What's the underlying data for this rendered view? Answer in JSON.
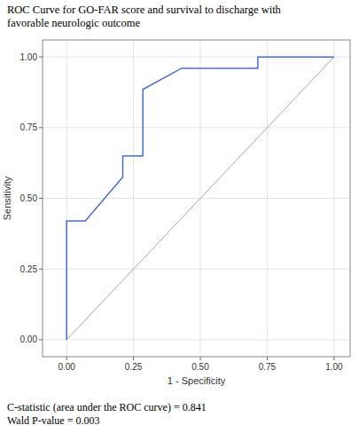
{
  "chart_data": {
    "type": "line",
    "title": [
      "ROC Curve for GO-FAR score and survival to discharge with",
      "favorable neurologic outcome"
    ],
    "x_label": "1 - Specificity",
    "y_label": "Sensitivity",
    "series": [
      {
        "color": "#4a6fd0",
        "line_style": "solid",
        "x": [
          0,
          0,
          0.07,
          0.21,
          0.21,
          0.285,
          0.285,
          0.43,
          0.715,
          0.715,
          1.0
        ],
        "values": [
          0,
          0.42,
          0.42,
          0.575,
          0.65,
          0.65,
          0.885,
          0.96,
          0.96,
          1.0,
          1.0
        ]
      },
      {
        "color": "#a8a8a8",
        "line_style": "solid",
        "x": [
          0,
          1
        ],
        "values": [
          0,
          1
        ]
      }
    ],
    "xlim": [
      -0.09,
      1.06
    ],
    "ylim": [
      -0.06,
      1.06
    ],
    "xticks": [
      {
        "value": 0,
        "label": "0.00"
      },
      {
        "value": 0.25,
        "label": "0.25"
      },
      {
        "value": 0.5,
        "label": "0.50"
      },
      {
        "value": 0.75,
        "label": "0.75"
      },
      {
        "value": 1,
        "label": "1.00"
      }
    ],
    "yticks": [
      {
        "value": 0,
        "label": "0.00"
      },
      {
        "value": 0.25,
        "label": "0.25"
      },
      {
        "value": 0.5,
        "label": "0.50"
      },
      {
        "value": 0.75,
        "label": "0.75"
      },
      {
        "value": 1,
        "label": "1.00"
      }
    ],
    "grid": true,
    "annotations": [
      "C-statistic (area under the ROC curve) = 0.841",
      "Wald P-value = 0.003"
    ]
  }
}
